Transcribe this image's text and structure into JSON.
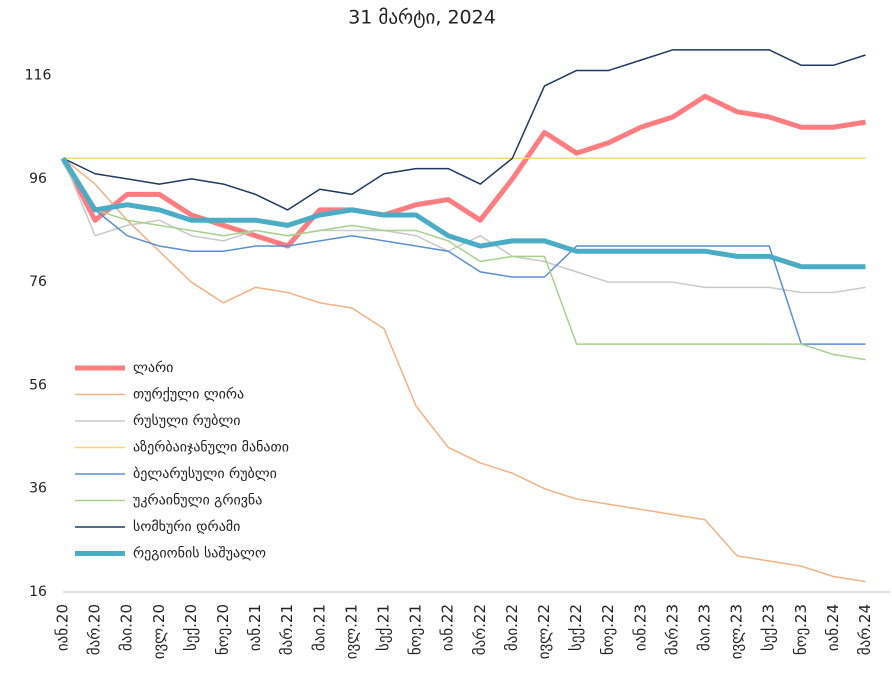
{
  "chart_data": {
    "type": "line",
    "title": "31 მარტი, 2024",
    "categories": [
      "იან.20",
      "მარ.20",
      "მაი.20",
      "ივლ.20",
      "სექ.20",
      "ნოე.20",
      "იან.21",
      "მარ.21",
      "მაი.21",
      "ივლ.21",
      "სექ.21",
      "ნოე.21",
      "იან.22",
      "მარ.22",
      "მაი.22",
      "ივლ.22",
      "სექ.22",
      "ნოე.22",
      "იან.23",
      "მარ.23",
      "მაი.23",
      "ივლ.23",
      "სექ.23",
      "ნოე.23",
      "იან.24",
      "მარ.24"
    ],
    "series": [
      {
        "name": "ლარი",
        "color": "#ff7c80",
        "width": 5,
        "values": [
          100,
          88,
          93,
          93,
          89,
          87,
          85,
          83,
          90,
          90,
          89,
          91,
          92,
          88,
          96,
          105,
          101,
          103,
          106,
          108,
          112,
          109,
          108,
          106,
          106,
          107
        ]
      },
      {
        "name": "თურქული ლირა",
        "color": "#f4b183",
        "width": 1.5,
        "values": [
          100,
          95,
          88,
          82,
          76,
          72,
          75,
          74,
          72,
          71,
          67,
          52,
          44,
          41,
          39,
          36,
          34,
          33,
          32,
          31,
          30,
          23,
          22,
          21,
          19,
          18
        ]
      },
      {
        "name": "რუსული რუბლი",
        "color": "#c9c9c9",
        "width": 1.5,
        "values": [
          100,
          85,
          87,
          88,
          85,
          84,
          86,
          85,
          86,
          86,
          86,
          85,
          82,
          85,
          81,
          80,
          78,
          76,
          76,
          76,
          75,
          75,
          75,
          74,
          74,
          75
        ]
      },
      {
        "name": "აზერბაიჯანული მანათი",
        "color": "#ffd966",
        "width": 1.5,
        "values": [
          100,
          100,
          100,
          100,
          100,
          100,
          100,
          100,
          100,
          100,
          100,
          100,
          100,
          100,
          100,
          100,
          100,
          100,
          100,
          100,
          100,
          100,
          100,
          100,
          100,
          100
        ]
      },
      {
        "name": "ბელარუსული რუბლი",
        "color": "#5b8fd1",
        "width": 1.5,
        "values": [
          100,
          90,
          85,
          83,
          82,
          82,
          83,
          83,
          84,
          85,
          84,
          83,
          82,
          78,
          77,
          77,
          83,
          83,
          83,
          83,
          83,
          83,
          83,
          64,
          64,
          64
        ]
      },
      {
        "name": "უკრაინული გრივნა",
        "color": "#a9d18e",
        "width": 1.5,
        "values": [
          99,
          90,
          88,
          87,
          86,
          85,
          86,
          85,
          86,
          87,
          86,
          86,
          84,
          80,
          81,
          81,
          64,
          64,
          64,
          64,
          64,
          64,
          64,
          64,
          62,
          61
        ]
      },
      {
        "name": "სომხური დრამი",
        "color": "#1f3864",
        "width": 1.5,
        "values": [
          100,
          97,
          96,
          95,
          96,
          95,
          93,
          90,
          94,
          93,
          97,
          98,
          98,
          95,
          100,
          114,
          117,
          117,
          119,
          121,
          121,
          121,
          121,
          118,
          118,
          120
        ]
      },
      {
        "name": "რეგიონის საშუალო",
        "color": "#4bacc6",
        "width": 5,
        "values": [
          100,
          90,
          91,
          90,
          88,
          88,
          88,
          87,
          89,
          90,
          89,
          89,
          85,
          83,
          84,
          84,
          82,
          82,
          82,
          82,
          82,
          81,
          81,
          79,
          79,
          79
        ]
      }
    ],
    "ylim": [
      16,
      126
    ],
    "yticks": [
      16,
      36,
      56,
      76,
      96,
      116
    ],
    "legend": "lower-left"
  }
}
